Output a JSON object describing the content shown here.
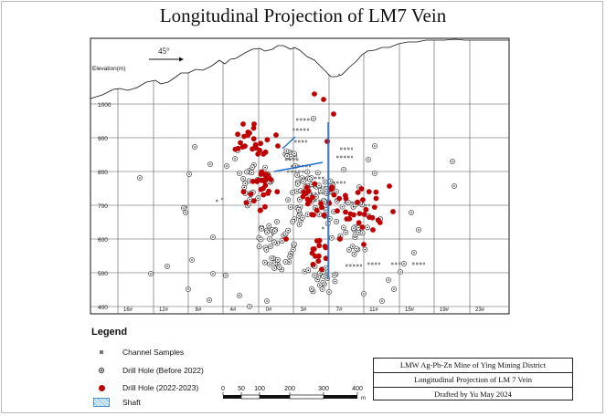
{
  "title": "Longitudinal Projection of LM7 Vein",
  "direction_label": "45°",
  "elevation_axis_label": "Elevation(m)",
  "elevations": [
    "1000",
    "900",
    "800",
    "700",
    "600",
    "500",
    "400"
  ],
  "exploration_lines": [
    "16#",
    "12#",
    "8#",
    "4#",
    "0#",
    "3#",
    "7#",
    "11#",
    "15#",
    "19#",
    "23#"
  ],
  "legend": {
    "title": "Legend",
    "items": [
      {
        "key": "channel",
        "label": "Channel Samples"
      },
      {
        "key": "old",
        "label": "Drill Hole (Before 2022)"
      },
      {
        "key": "new",
        "label": "Drill Hole (2022-2023)"
      },
      {
        "key": "shaft",
        "label": "Shaft"
      }
    ]
  },
  "scale_bar": {
    "ticks": [
      "0",
      "50",
      "100",
      "200",
      "300",
      "400"
    ],
    "unit": "m"
  },
  "info": {
    "line1": "LMW Ag-Pb-Zn Mine of  Ying Mining District",
    "line2": "Longitudinal Projection  of  LM 7 Vein",
    "line3": "Drafted by Yu May 2024"
  },
  "colors": {
    "drill_new": "#c00000",
    "drill_old": "#222222",
    "channel": "#888888",
    "shaft": "#1f6fd0",
    "grid": "#555555"
  }
}
